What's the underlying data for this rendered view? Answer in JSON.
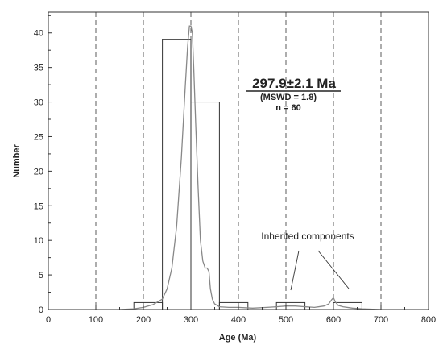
{
  "chart_data": {
    "type": "bar",
    "xlabel": "Age (Ma)",
    "ylabel": "Number",
    "xlim": [
      0,
      800
    ],
    "ylim": [
      0,
      43
    ],
    "x_ticks": [
      0,
      100,
      200,
      300,
      400,
      500,
      600,
      700,
      800
    ],
    "y_ticks": [
      0,
      5,
      10,
      15,
      20,
      25,
      30,
      35,
      40
    ],
    "x_tick_labels": [
      "0",
      "100",
      "200",
      "300",
      "400",
      "500",
      "600",
      "700",
      "800"
    ],
    "y_tick_labels": [
      "0",
      "5",
      "10",
      "15",
      "20",
      "25",
      "30",
      "35",
      "40"
    ],
    "vertical_dashed_lines": [
      100,
      200,
      300,
      400,
      500,
      600,
      700
    ],
    "histogram_bins": [
      {
        "x0": 180,
        "x1": 240,
        "count": 1
      },
      {
        "x0": 240,
        "x1": 300,
        "count": 39
      },
      {
        "x0": 300,
        "x1": 360,
        "count": 30
      },
      {
        "x0": 360,
        "x1": 420,
        "count": 1
      },
      {
        "x0": 480,
        "x1": 540,
        "count": 1
      },
      {
        "x0": 600,
        "x1": 660,
        "count": 1
      }
    ],
    "density_curve": {
      "x": [
        150,
        180,
        200,
        220,
        240,
        250,
        260,
        270,
        280,
        288,
        293,
        297,
        300,
        303,
        306,
        310,
        315,
        320,
        325,
        330,
        334,
        338,
        341,
        345,
        350,
        360,
        380,
        400,
        430,
        460,
        480,
        500,
        520,
        540,
        560,
        580,
        590,
        596,
        600,
        604,
        610,
        620,
        640,
        660,
        700
      ],
      "y": [
        0,
        0.1,
        0.3,
        0.7,
        1.5,
        3,
        6,
        12,
        22,
        32,
        38,
        41,
        41,
        40,
        35,
        27,
        18,
        10,
        7,
        6,
        6,
        5.5,
        3,
        1.5,
        0.8,
        0.4,
        0.3,
        0.3,
        0.2,
        0.3,
        0.4,
        0.5,
        0.5,
        0.4,
        0.3,
        0.5,
        0.8,
        1.4,
        1.7,
        1.1,
        0.6,
        0.4,
        0.2,
        0.1,
        0
      ]
    },
    "annotations": {
      "age_result": "297.9±2.1 Ma",
      "mswd": "(MSWD = 1.8)",
      "n": "n = 60",
      "inherited": "Inherited components"
    }
  }
}
